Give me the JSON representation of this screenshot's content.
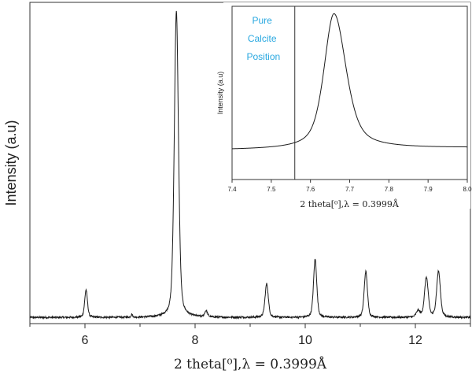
{
  "colors": {
    "line": "#1a1a1a",
    "axis": "#333333",
    "annotation": "#29a8e0",
    "background": "#ffffff"
  },
  "chart_data": [
    {
      "type": "line",
      "title": "",
      "xlabel": "2 theta[⁰],λ = 0.3999Å",
      "ylabel": "Intensity (a.u)",
      "xlim": [
        5,
        13
      ],
      "ylim": [
        0,
        1.05
      ],
      "x_ticks": [
        "6",
        "8",
        "10",
        "12"
      ],
      "x_tick_values": [
        6,
        8,
        10,
        12
      ],
      "y_ticks": [],
      "grid": false,
      "legend": "none",
      "baseline": 0.02,
      "peaks": [
        {
          "center": 6.02,
          "height": 0.09,
          "width": 0.03
        },
        {
          "center": 6.85,
          "height": 0.01,
          "width": 0.015
        },
        {
          "center": 7.66,
          "height": 1.0,
          "width": 0.045
        },
        {
          "center": 8.2,
          "height": 0.02,
          "width": 0.03
        },
        {
          "center": 9.3,
          "height": 0.11,
          "width": 0.035
        },
        {
          "center": 10.18,
          "height": 0.19,
          "width": 0.035
        },
        {
          "center": 11.1,
          "height": 0.15,
          "width": 0.035
        },
        {
          "center": 12.05,
          "height": 0.02,
          "width": 0.04
        },
        {
          "center": 12.2,
          "height": 0.13,
          "width": 0.04
        },
        {
          "center": 12.42,
          "height": 0.15,
          "width": 0.04
        }
      ]
    },
    {
      "type": "line",
      "title": "",
      "xlabel": "2 theta[⁰],λ = 0.3999Å",
      "ylabel": "Intensity (a.u)",
      "xlim": [
        7.4,
        8.0
      ],
      "ylim": [
        0,
        1.05
      ],
      "x_ticks": [
        "7.4",
        "7.5",
        "7.6",
        "7.7",
        "7.8",
        "7.9",
        "8.0"
      ],
      "x_tick_values": [
        7.4,
        7.5,
        7.6,
        7.7,
        7.8,
        7.9,
        8.0
      ],
      "grid": false,
      "legend": "none",
      "peak": {
        "center": 7.66,
        "height": 1.0,
        "baseline": 0.18,
        "hwhm": 0.035
      },
      "reference_line": {
        "x": 7.56,
        "label": [
          "Pure",
          "Calcite",
          "Position"
        ]
      }
    }
  ]
}
